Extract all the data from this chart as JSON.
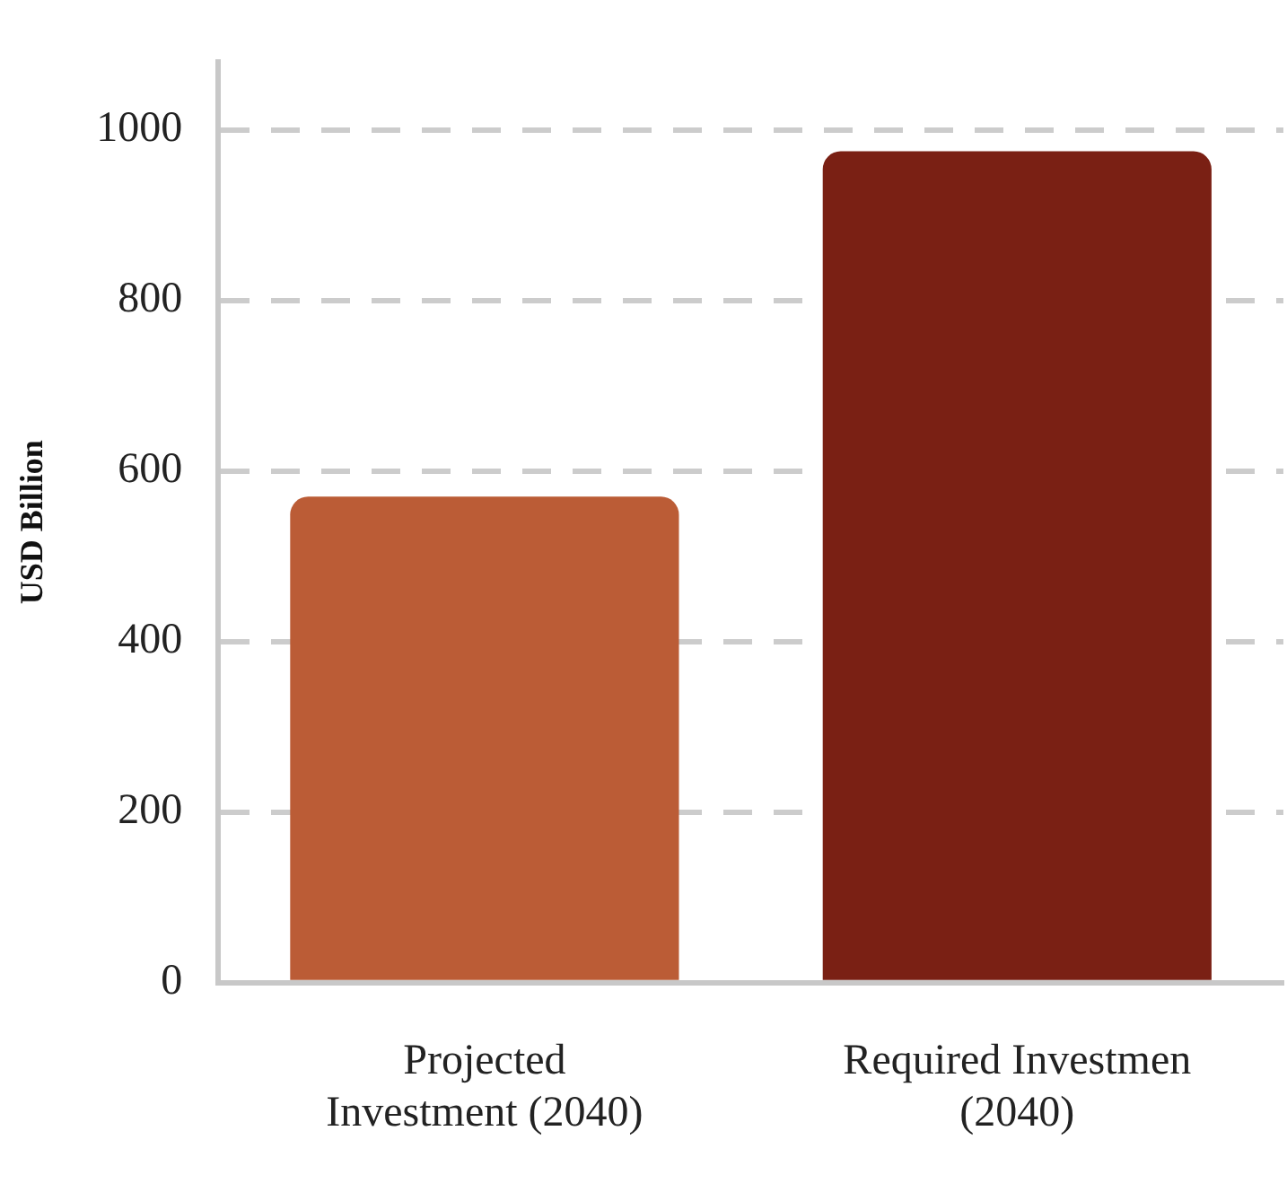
{
  "chart_data": {
    "type": "bar",
    "ylabel": "USD Billion",
    "categories": [
      "Projected Investment (2040)",
      "Required Investmen (2040)"
    ],
    "values": [
      570,
      975
    ],
    "colors": [
      "#bb5c36",
      "#7a2014"
    ],
    "ylim": [
      0,
      1080
    ],
    "yticks": [
      0,
      200,
      400,
      600,
      800,
      1000
    ],
    "grid": "y"
  }
}
